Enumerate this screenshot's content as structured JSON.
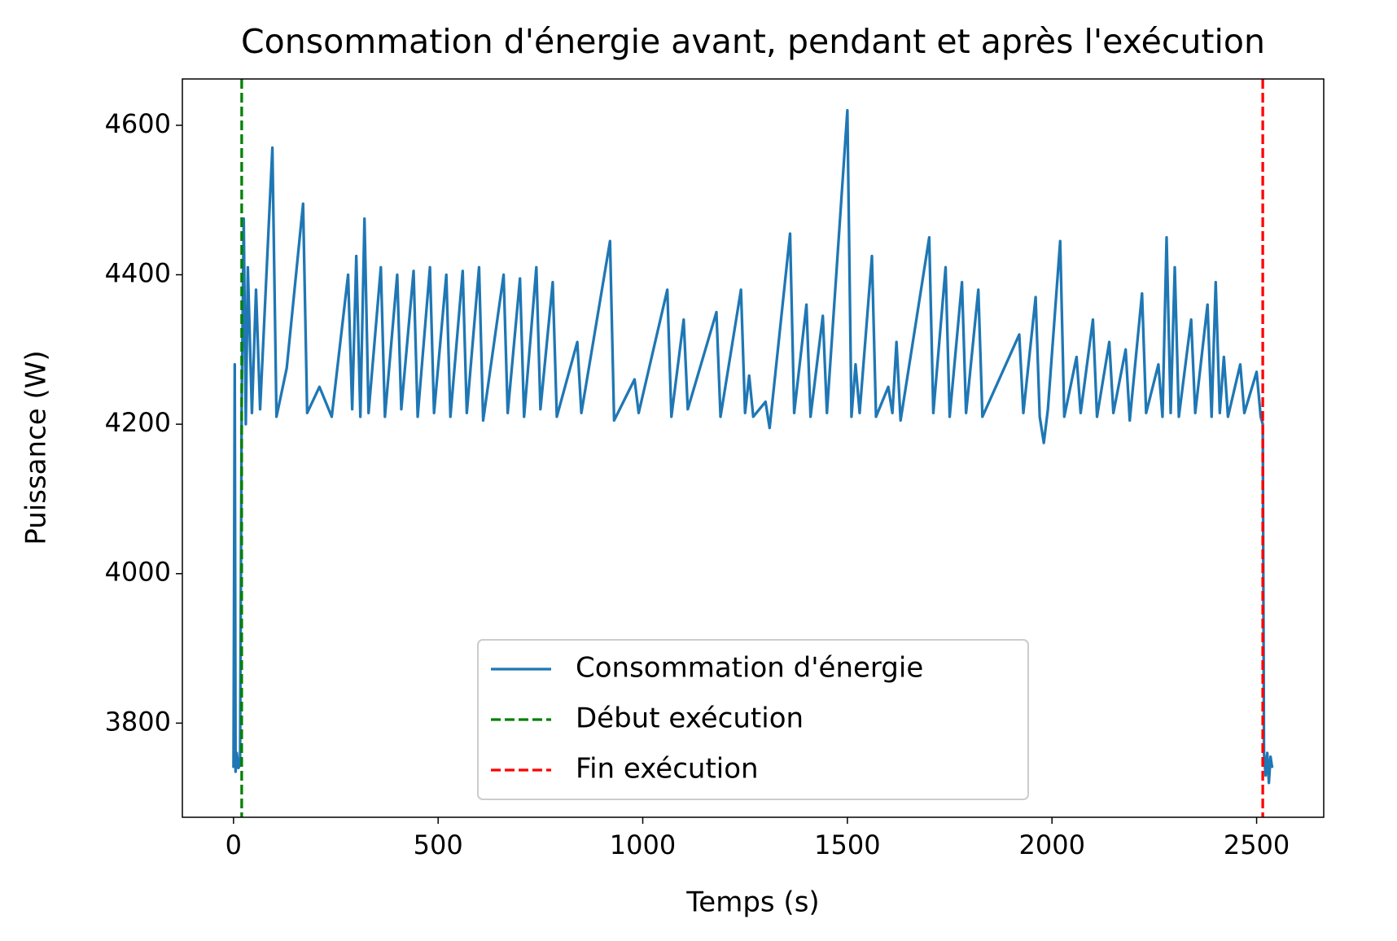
{
  "chart_data": {
    "type": "line",
    "title": "Consommation d'énergie avant, pendant et après l'exécution",
    "xlabel": "Temps (s)",
    "ylabel": "Puissance (W)",
    "xlim": [
      -125,
      2664
    ],
    "ylim": [
      3674,
      4662
    ],
    "xticks": [
      0,
      500,
      1000,
      1500,
      2000,
      2500
    ],
    "yticks": [
      3800,
      4000,
      4200,
      4400,
      4600
    ],
    "grid": false,
    "legend": "lower center",
    "series": [
      {
        "name": "Consommation d'énergie",
        "color": "#1f77b4",
        "x": [
          0,
          3,
          5,
          8,
          12,
          16,
          20,
          25,
          30,
          35,
          45,
          55,
          65,
          95,
          105,
          130,
          170,
          180,
          210,
          240,
          280,
          290,
          300,
          310,
          320,
          330,
          360,
          370,
          400,
          410,
          440,
          450,
          480,
          490,
          520,
          530,
          560,
          570,
          600,
          610,
          660,
          670,
          700,
          710,
          740,
          750,
          780,
          790,
          840,
          850,
          920,
          930,
          980,
          990,
          1060,
          1070,
          1100,
          1110,
          1180,
          1190,
          1240,
          1250,
          1260,
          1270,
          1300,
          1310,
          1360,
          1370,
          1400,
          1410,
          1440,
          1450,
          1500,
          1510,
          1520,
          1530,
          1560,
          1570,
          1600,
          1610,
          1620,
          1630,
          1700,
          1710,
          1740,
          1750,
          1780,
          1790,
          1820,
          1830,
          1920,
          1930,
          1960,
          1970,
          1980,
          1990,
          2020,
          2030,
          2060,
          2070,
          2100,
          2110,
          2140,
          2150,
          2180,
          2190,
          2220,
          2230,
          2260,
          2270,
          2280,
          2290,
          2300,
          2310,
          2340,
          2350,
          2380,
          2390,
          2400,
          2410,
          2420,
          2430,
          2460,
          2470,
          2500,
          2510,
          2515,
          2518,
          2522,
          2526,
          2530,
          2534,
          2538
        ],
        "values": [
          3740,
          4280,
          3735,
          3760,
          3740,
          3745,
          4230,
          4475,
          4200,
          4410,
          4215,
          4380,
          4220,
          4570,
          4210,
          4275,
          4495,
          4215,
          4250,
          4210,
          4400,
          4220,
          4425,
          4210,
          4475,
          4215,
          4410,
          4210,
          4400,
          4220,
          4405,
          4210,
          4410,
          4215,
          4400,
          4210,
          4405,
          4215,
          4410,
          4205,
          4400,
          4215,
          4395,
          4210,
          4410,
          4220,
          4390,
          4210,
          4310,
          4215,
          4445,
          4205,
          4260,
          4215,
          4380,
          4210,
          4340,
          4220,
          4350,
          4210,
          4380,
          4215,
          4265,
          4210,
          4230,
          4195,
          4455,
          4215,
          4360,
          4210,
          4345,
          4215,
          4620,
          4210,
          4280,
          4215,
          4425,
          4210,
          4250,
          4215,
          4310,
          4205,
          4450,
          4215,
          4410,
          4210,
          4390,
          4215,
          4380,
          4210,
          4320,
          4215,
          4370,
          4210,
          4175,
          4220,
          4445,
          4210,
          4290,
          4215,
          4340,
          4210,
          4310,
          4215,
          4300,
          4205,
          4375,
          4215,
          4280,
          4210,
          4450,
          4215,
          4410,
          4210,
          4340,
          4215,
          4360,
          4210,
          4390,
          4215,
          4290,
          4210,
          4280,
          4215,
          4270,
          4210,
          4200,
          3760,
          3730,
          3760,
          3720,
          3755,
          3740
        ]
      }
    ],
    "vlines": [
      {
        "name": "Début exécution",
        "color": "green",
        "x": 20
      },
      {
        "name": "Fin exécution",
        "color": "red",
        "x": 2515
      }
    ]
  }
}
